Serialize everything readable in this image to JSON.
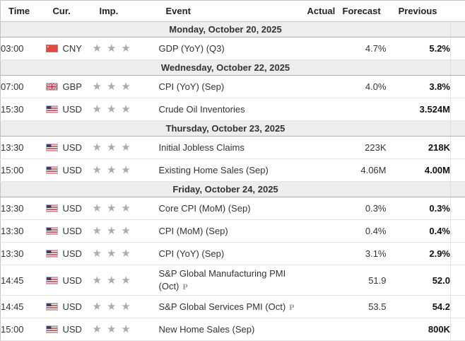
{
  "header": {
    "columns": [
      "Time",
      "Cur.",
      "Imp.",
      "Event",
      "Actual",
      "Forecast",
      "Previous"
    ]
  },
  "icons": {
    "star": "★",
    "preliminary_label": "P"
  },
  "colors": {
    "date_band_bg": "#ededed",
    "band_border": "#b0b0b0",
    "row_border": "#e3e3e3",
    "outer_border": "#c6c6c6",
    "text": "#333333",
    "previous_text": "#111111",
    "star": "#ababab",
    "cn_flag_red": "#dd4b43",
    "gb_flag_blue": "#26337f",
    "us_flag_red": "#b23b4a",
    "us_flag_canton": "#3c3b6e"
  },
  "calendar": {
    "sections": [
      {
        "date": "Monday, October 20, 2025",
        "rows": [
          {
            "time": "03:00",
            "currency": "CNY",
            "flag": "cn",
            "importance": 3,
            "event": "GDP (YoY) (Q3)",
            "actual": "",
            "forecast": "4.7%",
            "previous": "5.2%",
            "preliminary": false
          }
        ]
      },
      {
        "date": "Wednesday, October 22, 2025",
        "rows": [
          {
            "time": "07:00",
            "currency": "GBP",
            "flag": "gb",
            "importance": 3,
            "event": "CPI (YoY) (Sep)",
            "actual": "",
            "forecast": "4.0%",
            "previous": "3.8%",
            "preliminary": false
          },
          {
            "time": "15:30",
            "currency": "USD",
            "flag": "us",
            "importance": 3,
            "event": "Crude Oil Inventories",
            "actual": "",
            "forecast": "",
            "previous": "3.524M",
            "preliminary": false
          }
        ]
      },
      {
        "date": "Thursday, October 23, 2025",
        "rows": [
          {
            "time": "13:30",
            "currency": "USD",
            "flag": "us",
            "importance": 3,
            "event": "Initial Jobless Claims",
            "actual": "",
            "forecast": "223K",
            "previous": "218K",
            "preliminary": false
          },
          {
            "time": "15:00",
            "currency": "USD",
            "flag": "us",
            "importance": 3,
            "event": "Existing Home Sales (Sep)",
            "actual": "",
            "forecast": "4.06M",
            "previous": "4.00M",
            "preliminary": false
          }
        ]
      },
      {
        "date": "Friday, October 24, 2025",
        "rows": [
          {
            "time": "13:30",
            "currency": "USD",
            "flag": "us",
            "importance": 3,
            "event": "Core CPI (MoM) (Sep)",
            "actual": "",
            "forecast": "0.3%",
            "previous": "0.3%",
            "preliminary": false
          },
          {
            "time": "13:30",
            "currency": "USD",
            "flag": "us",
            "importance": 3,
            "event": "CPI (MoM) (Sep)",
            "actual": "",
            "forecast": "0.4%",
            "previous": "0.4%",
            "preliminary": false
          },
          {
            "time": "13:30",
            "currency": "USD",
            "flag": "us",
            "importance": 3,
            "event": "CPI (YoY) (Sep)",
            "actual": "",
            "forecast": "3.1%",
            "previous": "2.9%",
            "preliminary": false
          },
          {
            "time": "14:45",
            "currency": "USD",
            "flag": "us",
            "importance": 3,
            "event": "S&P Global Manufacturing PMI (Oct)",
            "actual": "",
            "forecast": "51.9",
            "previous": "52.0",
            "preliminary": true
          },
          {
            "time": "14:45",
            "currency": "USD",
            "flag": "us",
            "importance": 3,
            "event": "S&P Global Services PMI (Oct)",
            "actual": "",
            "forecast": "53.5",
            "previous": "54.2",
            "preliminary": true
          },
          {
            "time": "15:00",
            "currency": "USD",
            "flag": "us",
            "importance": 3,
            "event": "New Home Sales (Sep)",
            "actual": "",
            "forecast": "",
            "previous": "800K",
            "preliminary": false
          }
        ]
      }
    ]
  }
}
